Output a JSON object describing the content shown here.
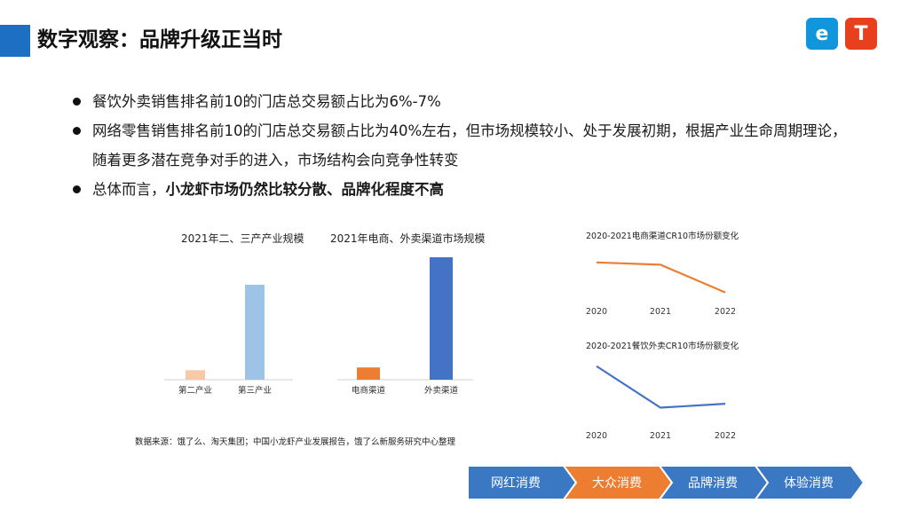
{
  "header": {
    "title": "数字观察：品牌升级正当时",
    "logo_e": "e",
    "logo_t": "T"
  },
  "bullets": {
    "b1": "餐饮外卖销售排名前10的门店总交易额占比为6%-7%",
    "b2": "网络零售销售排名前10的门店总交易额占比为40%左右，但市场规模较小、处于发展初期，根据产业生命周期理论，随着更多潜在竞争对手的进入，市场结构会向竞争性转变",
    "b3_normal": "总体而言，",
    "b3_bold": "小龙虾市场仍然比较分散、品牌化程度不高"
  },
  "chart_data": [
    {
      "type": "bar",
      "title": "2021年二、三产产业规模",
      "categories": [
        "第二产业",
        "第三产业"
      ],
      "values": [
        10,
        100
      ],
      "colors": [
        "#f8c9a6",
        "#9dc3e6"
      ]
    },
    {
      "type": "bar",
      "title": "2021年电商、外卖渠道市场规模",
      "categories": [
        "电商渠道",
        "外卖渠道"
      ],
      "values": [
        10,
        100
      ],
      "colors": [
        "#ed7d31",
        "#4472c4"
      ]
    },
    {
      "type": "line",
      "title": "2020-2021电商渠道CR10市场份额变化",
      "x": [
        "2020",
        "2021",
        "2022"
      ],
      "values": [
        85,
        80,
        20
      ],
      "color": "#ed7d31"
    },
    {
      "type": "line",
      "title": "2020-2021餐饮外卖CR10市场份额变化",
      "x": [
        "2020",
        "2021",
        "2022"
      ],
      "values": [
        95,
        10,
        18
      ],
      "color": "#4472c4"
    }
  ],
  "source": "数据来源：饿了么、淘天集团；中国小龙虾产业发展报告，饿了么新服务研究中心整理",
  "flow": {
    "steps": [
      "网红消费",
      "大众消费",
      "品牌消费",
      "体验消费"
    ],
    "colors": [
      "#3a78c3",
      "#ed7d31",
      "#3a78c3",
      "#3a78c3"
    ]
  }
}
